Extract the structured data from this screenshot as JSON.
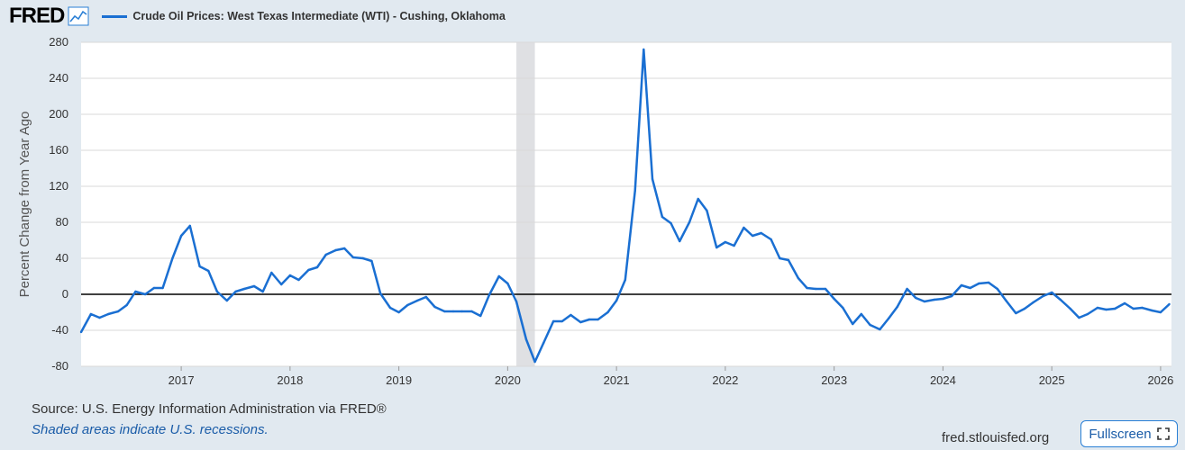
{
  "header": {
    "logo": "FRED",
    "legend_label": "Crude Oil Prices: West Texas Intermediate (WTI) - Cushing, Oklahoma"
  },
  "footer": {
    "source": "Source: U.S. Energy Information Administration via FRED®",
    "note": "Shaded areas indicate U.S. recessions.",
    "site": "fred.stlouisfed.org",
    "fullscreen_label": "Fullscreen"
  },
  "colors": {
    "series": "#1a6fd2",
    "recession": "#dfe0e3",
    "background": "#e1e9f0",
    "plot": "#ffffff"
  },
  "icons": [
    "fred-graph-icon",
    "fullscreen-icon"
  ],
  "chart_data": {
    "type": "line",
    "title": "Crude Oil Prices: West Texas Intermediate (WTI) - Cushing, Oklahoma",
    "xlabel": "",
    "ylabel": "Percent Change from Year Ago",
    "xlim": [
      2016.08,
      2026.1
    ],
    "ylim": [
      -80,
      280
    ],
    "grid": "horizontal",
    "yticks": [
      280,
      240,
      200,
      160,
      120,
      80,
      40,
      0,
      -40,
      -80
    ],
    "ytick_labels": [
      "280",
      "240",
      "200",
      "160",
      "120",
      "80",
      "40",
      "0",
      "-40",
      "-80"
    ],
    "xticks": [
      2017,
      2018,
      2019,
      2020,
      2021,
      2022,
      2023,
      2024,
      2025,
      2026
    ],
    "xtick_labels": [
      "2017",
      "2018",
      "2019",
      "2020",
      "2021",
      "2022",
      "2023",
      "2024",
      "2025",
      "2026"
    ],
    "recessions": [
      [
        2020.08,
        2020.25
      ]
    ],
    "series": [
      {
        "name": "Crude Oil Prices: West Texas Intermediate (WTI) - Cushing, Oklahoma",
        "x": [
          2016.08,
          2016.17,
          2016.25,
          2016.33,
          2016.42,
          2016.5,
          2016.58,
          2016.67,
          2016.75,
          2016.83,
          2016.92,
          2017.0,
          2017.08,
          2017.17,
          2017.25,
          2017.33,
          2017.42,
          2017.5,
          2017.58,
          2017.67,
          2017.75,
          2017.83,
          2017.92,
          2018.0,
          2018.08,
          2018.17,
          2018.25,
          2018.33,
          2018.42,
          2018.5,
          2018.58,
          2018.67,
          2018.75,
          2018.83,
          2018.92,
          2019.0,
          2019.08,
          2019.17,
          2019.25,
          2019.33,
          2019.42,
          2019.5,
          2019.58,
          2019.67,
          2019.75,
          2019.83,
          2019.92,
          2020.0,
          2020.08,
          2020.17,
          2020.25,
          2020.33,
          2020.42,
          2020.5,
          2020.58,
          2020.67,
          2020.75,
          2020.83,
          2020.92,
          2021.0,
          2021.08,
          2021.17,
          2021.25,
          2021.33,
          2021.42,
          2021.5,
          2021.58,
          2021.67,
          2021.75,
          2021.83,
          2021.92,
          2022.0,
          2022.08,
          2022.17,
          2022.25,
          2022.33,
          2022.42,
          2022.5,
          2022.58,
          2022.67,
          2022.75,
          2022.83,
          2022.92,
          2023.0,
          2023.08,
          2023.17,
          2023.25,
          2023.33,
          2023.42,
          2023.5,
          2023.58,
          2023.67,
          2023.75,
          2023.83,
          2023.92,
          2024.0,
          2024.08,
          2024.17,
          2024.25,
          2024.33,
          2024.42,
          2024.5,
          2024.58,
          2024.67,
          2024.75,
          2024.83,
          2024.92,
          2025.0,
          2025.08,
          2025.17,
          2025.25,
          2025.33,
          2025.42,
          2025.5,
          2025.58,
          2025.67,
          2025.75,
          2025.83,
          2025.92,
          2026.0,
          2026.08
        ],
        "values": [
          -42,
          -22,
          -26,
          -22,
          -19,
          -12,
          3,
          0,
          7,
          7,
          40,
          65,
          76,
          31,
          26,
          3,
          -7,
          3,
          6,
          9,
          3,
          24,
          11,
          21,
          16,
          27,
          30,
          44,
          49,
          51,
          41,
          40,
          37,
          1,
          -15,
          -20,
          -12,
          -7,
          -3,
          -14,
          -19,
          -19,
          -19,
          -19,
          -24,
          -1,
          20,
          12,
          -8,
          -50,
          -75,
          -54,
          -30,
          -30,
          -23,
          -31,
          -28,
          -28,
          -20,
          -7,
          16,
          115,
          272,
          128,
          86,
          79,
          59,
          80,
          106,
          93,
          52,
          58,
          54,
          74,
          65,
          68,
          61,
          40,
          38,
          18,
          7,
          6,
          6,
          -5,
          -15,
          -33,
          -22,
          -34,
          -39,
          -27,
          -14,
          6,
          -4,
          -8,
          -6,
          -5,
          -2,
          10,
          7,
          12,
          13,
          6,
          -7,
          -21,
          -16,
          -9,
          -2,
          2,
          -6,
          -16,
          -26,
          -22,
          -15,
          -17,
          -16,
          -10,
          -16,
          -15,
          -18,
          -20,
          -11
        ]
      }
    ]
  }
}
